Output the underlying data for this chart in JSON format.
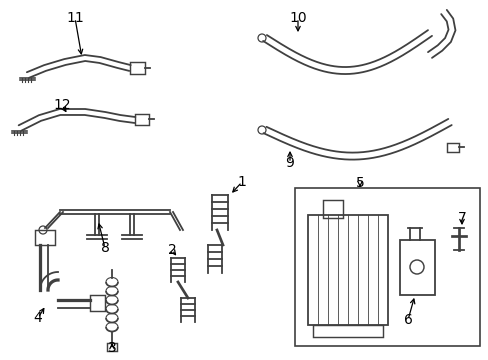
{
  "bg_color": "#ffffff",
  "line_color": "#404040",
  "label_color": "#000000",
  "fig_width": 4.89,
  "fig_height": 3.6,
  "dpi": 100,
  "lw": 1.3,
  "lw_thin": 0.8,
  "fontsize": 10
}
